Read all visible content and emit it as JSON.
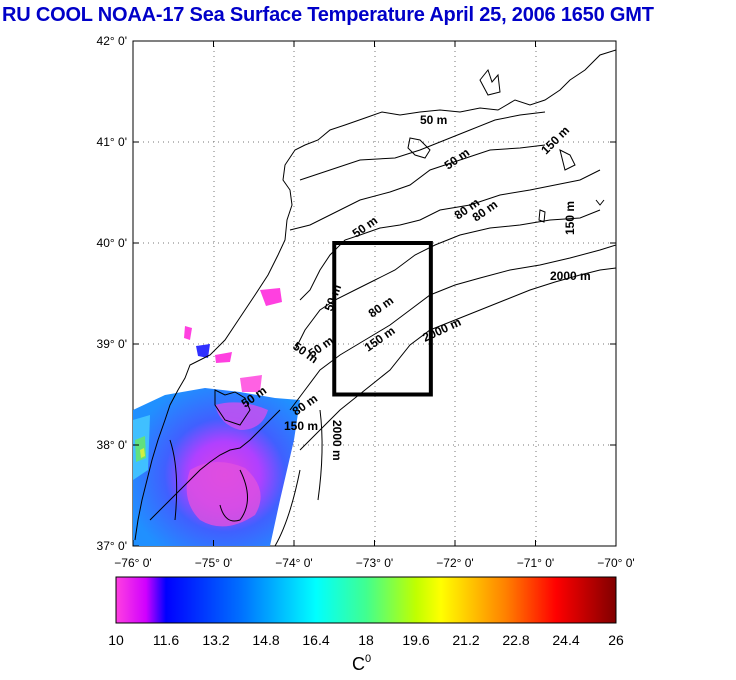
{
  "title": "RU COOL  NOAA-17 Sea Surface Temperature April 25, 2006 1650 GMT",
  "map": {
    "lon_range": [
      -76,
      -70
    ],
    "lat_range": [
      37,
      42
    ],
    "lon_ticks": [
      "−76° 0'",
      "−75° 0'",
      "−74° 0'",
      "−73° 0'",
      "−72° 0'",
      "−71° 0'",
      "−70° 0'"
    ],
    "lat_ticks": [
      "37° 0'",
      "38° 0'",
      "39° 0'",
      "40° 0'",
      "41° 0'",
      "42° 0'"
    ],
    "contour_labels": [
      "50 m",
      "50 m",
      "80 m",
      "80 m",
      "150 m",
      "150 m",
      "2000 m",
      "50 m",
      "80 m",
      "50 m",
      "50 m",
      "150 m",
      "2000 m",
      "50 m",
      "80 m",
      "150 m",
      "2000 m",
      "50 m"
    ],
    "study_box": {
      "lon": [
        -73.5,
        -72.3
      ],
      "lat": [
        38.5,
        40.0
      ]
    }
  },
  "colorbar": {
    "min": 10,
    "max": 26,
    "ticks": [
      "10",
      "11.6",
      "13.2",
      "14.8",
      "16.4",
      "18",
      "19.6",
      "21.2",
      "22.8",
      "24.4",
      "26"
    ],
    "unit_label": "C",
    "unit_superscript": "0",
    "colors": [
      "#ff40e0",
      "#d000ff",
      "#7000ff",
      "#0000ff",
      "#0060ff",
      "#00b0ff",
      "#00ffff",
      "#00ff90",
      "#60ff00",
      "#d0ff00",
      "#ffff00",
      "#ffc000",
      "#ff7000",
      "#ff2000",
      "#d00000",
      "#800000"
    ]
  }
}
